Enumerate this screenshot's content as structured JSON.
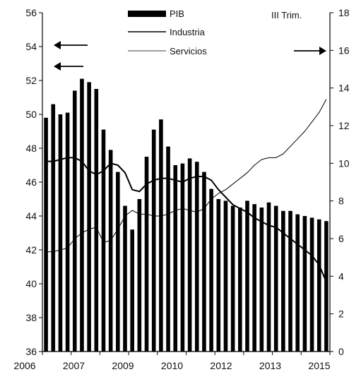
{
  "chart_data": {
    "type": "bar",
    "annotation": "III Trim.",
    "x_tick_labels": [
      "2006",
      "2007",
      "2009",
      "2010",
      "2012",
      "2013",
      "2015"
    ],
    "y_left": {
      "min": 36,
      "max": 56,
      "step": 2
    },
    "y_right": {
      "min": 0,
      "max": 18,
      "step": 2
    },
    "legend": [
      "PIB",
      "Industria",
      "Servicios"
    ],
    "colors": {
      "bars": "#000000",
      "industria": "#000000",
      "servicios": "#000000"
    },
    "series": [
      {
        "name": "PIB",
        "type": "bar",
        "axis": "left",
        "values": [
          49.8,
          50.6,
          50.0,
          50.1,
          51.4,
          52.1,
          51.9,
          51.5,
          49.1,
          47.9,
          46.6,
          44.6,
          43.2,
          45.0,
          47.5,
          49.1,
          49.7,
          48.1,
          47.0,
          47.1,
          47.4,
          47.2,
          46.6,
          45.6,
          45.0,
          44.9,
          44.6,
          44.5,
          44.9,
          44.7,
          44.5,
          44.8,
          44.6,
          44.3,
          44.3,
          44.1,
          44.0,
          43.9,
          43.8,
          43.7
        ]
      },
      {
        "name": "Industria",
        "type": "line",
        "axis": "right",
        "values": [
          10.1,
          10.1,
          10.2,
          10.3,
          10.3,
          10.1,
          9.6,
          9.4,
          9.6,
          10.0,
          9.9,
          9.5,
          8.6,
          8.5,
          8.9,
          9.1,
          9.2,
          9.2,
          9.1,
          9.0,
          9.2,
          9.3,
          9.3,
          9.1,
          8.6,
          8.2,
          7.8,
          7.6,
          7.4,
          7.1,
          6.9,
          6.7,
          6.6,
          6.3,
          6.0,
          5.7,
          5.4,
          5.1,
          4.6,
          3.7
        ]
      },
      {
        "name": "Servicios",
        "type": "line",
        "axis": "right",
        "values": [
          5.3,
          5.3,
          5.4,
          5.5,
          6.0,
          6.3,
          6.5,
          6.6,
          5.8,
          5.9,
          6.5,
          7.2,
          7.5,
          7.3,
          7.3,
          7.2,
          7.2,
          7.3,
          7.5,
          7.6,
          7.5,
          7.4,
          7.6,
          8.1,
          8.4,
          8.6,
          8.9,
          9.2,
          9.5,
          9.9,
          10.2,
          10.3,
          10.3,
          10.5,
          10.9,
          11.3,
          11.7,
          12.2,
          12.7,
          13.4
        ]
      }
    ]
  }
}
